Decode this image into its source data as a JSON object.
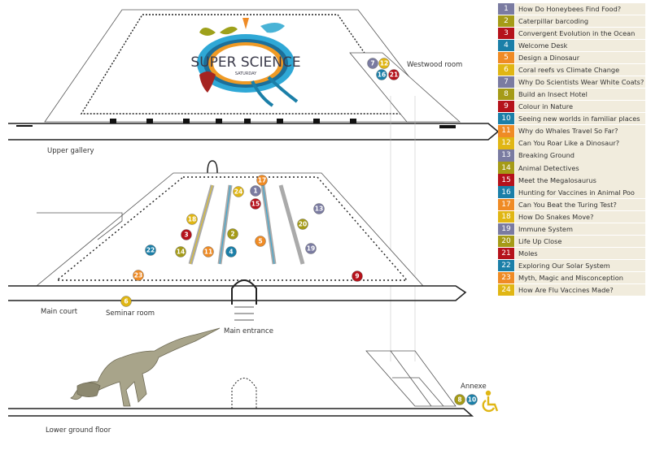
{
  "colors": {
    "purple": "#7a7ba1",
    "olive": "#a59b17",
    "red": "#b5121b",
    "blue": "#1b7fa8",
    "orange": "#ef8b25",
    "yellow": "#e0b614",
    "legend_bg": "#f1ecdd"
  },
  "logo": {
    "title": "SUPER SCIENCE",
    "subtitle": "SATURDAY"
  },
  "labels": {
    "upper_gallery": "Upper gallery",
    "westwood_room": "Westwood room",
    "main_court": "Main court",
    "seminar_room": "Seminar room",
    "main_entrance": "Main entrance",
    "lower_ground_floor": "Lower ground floor",
    "annexe": "Annexe"
  },
  "markers": {
    "westwood_room": [
      7,
      12,
      16,
      21
    ],
    "main_court": [
      17,
      24,
      1,
      15,
      13,
      18,
      20,
      3,
      2,
      5,
      22,
      14,
      11,
      4,
      19,
      23,
      9
    ],
    "seminar_room": [
      6
    ],
    "annexe": [
      8,
      10
    ]
  },
  "accessibility_icon": "wheelchair-icon",
  "legend": [
    {
      "n": "1",
      "label": "How Do Honeybees Find Food?",
      "color": "purple"
    },
    {
      "n": "2",
      "label": "Caterpillar barcoding",
      "color": "olive"
    },
    {
      "n": "3",
      "label": "Convergent Evolution in the Ocean",
      "color": "red"
    },
    {
      "n": "4",
      "label": "Welcome Desk",
      "color": "blue"
    },
    {
      "n": "5",
      "label": "Design a Dinosaur",
      "color": "orange"
    },
    {
      "n": "6",
      "label": "Coral reefs vs Climate Change",
      "color": "yellow"
    },
    {
      "n": "7",
      "label": "Why Do Scientists Wear White Coats?",
      "color": "purple"
    },
    {
      "n": "8",
      "label": "Build an Insect Hotel",
      "color": "olive"
    },
    {
      "n": "9",
      "label": "Colour in Nature",
      "color": "red"
    },
    {
      "n": "10",
      "label": "Seeing new worlds in familiar places",
      "color": "blue"
    },
    {
      "n": "11",
      "label": "Why do Whales Travel So Far?",
      "color": "orange"
    },
    {
      "n": "12",
      "label": "Can You Roar Like a Dinosaur?",
      "color": "yellow"
    },
    {
      "n": "13",
      "label": "Breaking Ground",
      "color": "purple"
    },
    {
      "n": "14",
      "label": "Animal Detectives",
      "color": "olive"
    },
    {
      "n": "15",
      "label": "Meet the Megalosaurus",
      "color": "red"
    },
    {
      "n": "16",
      "label": "Hunting for Vaccines in Animal Poo",
      "color": "blue"
    },
    {
      "n": "17",
      "label": "Can You Beat the Turing Test?",
      "color": "orange"
    },
    {
      "n": "18",
      "label": "How Do Snakes Move?",
      "color": "yellow"
    },
    {
      "n": "19",
      "label": "Immune System",
      "color": "purple"
    },
    {
      "n": "20",
      "label": "Life Up Close",
      "color": "olive"
    },
    {
      "n": "21",
      "label": "Moles",
      "color": "red"
    },
    {
      "n": "22",
      "label": "Exploring Our Solar System",
      "color": "blue"
    },
    {
      "n": "23",
      "label": "Myth, Magic and Misconception",
      "color": "orange"
    },
    {
      "n": "24",
      "label": "How Are Flu Vaccines Made?",
      "color": "yellow"
    }
  ]
}
